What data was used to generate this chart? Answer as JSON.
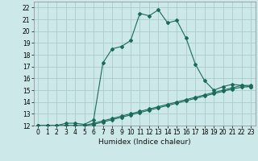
{
  "title": "",
  "xlabel": "Humidex (Indice chaleur)",
  "ylabel": "",
  "background_color": "#cce8e8",
  "grid_color": "#aacccc",
  "line_color": "#1a6b5a",
  "xlim": [
    -0.5,
    23.5
  ],
  "ylim": [
    12,
    22.5
  ],
  "xtick_labels": [
    "0",
    "1",
    "2",
    "3",
    "4",
    "5",
    "6",
    "7",
    "8",
    "9",
    "10",
    "11",
    "12",
    "13",
    "14",
    "15",
    "16",
    "17",
    "18",
    "19",
    "20",
    "21",
    "22",
    "23"
  ],
  "ytick_labels": [
    "12",
    "13",
    "14",
    "15",
    "16",
    "17",
    "18",
    "19",
    "20",
    "21",
    "22"
  ],
  "ytick_vals": [
    12,
    13,
    14,
    15,
    16,
    17,
    18,
    19,
    20,
    21,
    22
  ],
  "xtick_vals": [
    0,
    1,
    2,
    3,
    4,
    5,
    6,
    7,
    8,
    9,
    10,
    11,
    12,
    13,
    14,
    15,
    16,
    17,
    18,
    19,
    20,
    21,
    22,
    23
  ],
  "line1_x": [
    0,
    1,
    2,
    3,
    4,
    5,
    6,
    7,
    8,
    9,
    10,
    11,
    12,
    13,
    14,
    15,
    16,
    17,
    18,
    19,
    20,
    21,
    22,
    23
  ],
  "line1_y": [
    12,
    12,
    12,
    12.2,
    12.2,
    12.1,
    12.5,
    17.3,
    18.5,
    18.7,
    19.2,
    21.5,
    21.3,
    21.8,
    20.7,
    20.9,
    19.4,
    17.2,
    15.8,
    15.0,
    15.3,
    15.5,
    15.4,
    15.3
  ],
  "line2_x": [
    0,
    1,
    2,
    3,
    4,
    5,
    6,
    7,
    8,
    9,
    10,
    11,
    12,
    13,
    14,
    15,
    16,
    17,
    18,
    19,
    20,
    21,
    22,
    23
  ],
  "line2_y": [
    12,
    12,
    12,
    12,
    12,
    12,
    12.2,
    12.4,
    12.6,
    12.8,
    13.0,
    13.2,
    13.4,
    13.6,
    13.8,
    14.0,
    14.2,
    14.4,
    14.6,
    14.8,
    15.0,
    15.2,
    15.4,
    15.4
  ],
  "line3_x": [
    0,
    1,
    2,
    3,
    4,
    5,
    6,
    7,
    8,
    9,
    10,
    11,
    12,
    13,
    14,
    15,
    16,
    17,
    18,
    19,
    20,
    21,
    22,
    23
  ],
  "line3_y": [
    12,
    12,
    12,
    12,
    12,
    12,
    12.1,
    12.3,
    12.5,
    12.7,
    12.9,
    13.1,
    13.3,
    13.5,
    13.7,
    13.9,
    14.1,
    14.3,
    14.5,
    14.7,
    14.9,
    15.1,
    15.25,
    15.3
  ],
  "marker_style": "D",
  "marker_size": 2.0,
  "line_width": 0.8,
  "tick_fontsize": 5.5,
  "xlabel_fontsize": 6.5
}
